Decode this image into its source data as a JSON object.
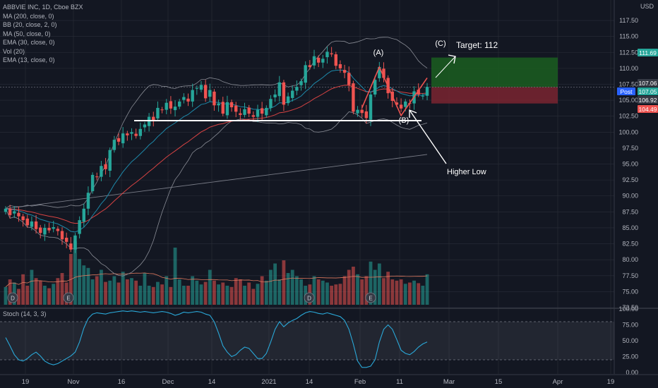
{
  "legend": {
    "title": "ABBVIE INC, 1D, Cboe BZX",
    "indicators": [
      "MA (200, close, 0)",
      "BB (20, close, 2, 0)",
      "MA (50, close, 0)",
      "EMA (30, close, 0)",
      "Vol (20)",
      "EMA (13, close, 0)"
    ]
  },
  "stoch_label": "Stoch (14, 3, 3)",
  "currency": "USD",
  "colors": {
    "up": "#26a69a",
    "down": "#ef5350",
    "bg": "#131722",
    "grid": "#2a2e39",
    "bb": "#8a8d96",
    "ema13": "#1e88a8",
    "ema30": "#d84343",
    "ma200": "#787b86",
    "stoch": "#2aa8d8",
    "target_zone": "#1b5e20",
    "stop_zone": "#7a2430"
  },
  "annotations": {
    "point_a": "(A)",
    "point_b": "(B)",
    "point_c": "(C)",
    "target": "Target: 112",
    "higher_low": "Higher Low"
  },
  "chart_data": {
    "type": "candlestick",
    "title": "ABBVIE INC, 1D, Cboe BZX",
    "x_tick_labels": [
      "19",
      "Nov",
      "16",
      "Dec",
      "14",
      "2021",
      "14",
      "Feb",
      "11",
      "Mar",
      "15",
      "Apr",
      "19"
    ],
    "y_tick_labels": [
      "117.50",
      "115.00",
      "112.50",
      "110.00",
      "107.50",
      "105.00",
      "102.50",
      "100.00",
      "97.50",
      "95.00",
      "92.50",
      "90.00",
      "87.50",
      "85.00",
      "82.50",
      "80.00",
      "77.50",
      "75.00",
      "72.50"
    ],
    "ylim": [
      72.5,
      118.5
    ],
    "price_labels": [
      {
        "label": "111.69",
        "value": 111.69,
        "color": "#26a69a"
      },
      {
        "label": "107.06",
        "value": 107.06,
        "color": "#363a45"
      },
      {
        "label": "Post",
        "value": 107.05,
        "color": "#2962ff"
      },
      {
        "label": "107.05",
        "value": 107.05,
        "color": "#26a69a"
      },
      {
        "label": "106.92",
        "value": 106.92,
        "color": "#363a45"
      },
      {
        "label": "104.49",
        "value": 104.49,
        "color": "#ef5350"
      }
    ],
    "trade_zone": {
      "target": 111.69,
      "entry": 107.06,
      "stop": 104.49
    },
    "support_level": 101.8,
    "point_a": 110.2,
    "point_b": 102.6,
    "closes": [
      88.0,
      87.0,
      87.6,
      86.8,
      86.2,
      85.4,
      86.0,
      84.8,
      84.2,
      85.0,
      84.6,
      85.1,
      84.5,
      83.2,
      82.8,
      81.6,
      83.8,
      86.2,
      88.0,
      90.5,
      93.3,
      93.0,
      94.7,
      94.2,
      97.2,
      98.8,
      98.5,
      99.8,
      99.5,
      100.0,
      99.4,
      100.5,
      101.2,
      102.4,
      101.9,
      103.8,
      103.5,
      104.6,
      103.7,
      104.0,
      104.8,
      105.5,
      104.8,
      106.6,
      106.9,
      107.4,
      105.3,
      106.6,
      104.2,
      104.5,
      102.9,
      104.7,
      103.9,
      103.2,
      102.7,
      103.6,
      102.9,
      102.4,
      103.5,
      102.9,
      103.8,
      105.2,
      105.9,
      107.8,
      104.3,
      105.6,
      106.5,
      107.1,
      108.0,
      110.5,
      110.2,
      111.9,
      110.9,
      111.5,
      112.6,
      112.2,
      110.4,
      110.0,
      109.3,
      107.4,
      103.2,
      103.5,
      103.0,
      102.2,
      105.9,
      108.2,
      110.2,
      108.5,
      106.1,
      104.9,
      104.3,
      103.7,
      104.8,
      104.5,
      106.4,
      105.9,
      105.7,
      107.1
    ],
    "volumes": [
      28,
      40,
      35,
      25,
      48,
      30,
      55,
      42,
      38,
      30,
      26,
      33,
      42,
      50,
      35,
      80,
      100,
      72,
      62,
      58,
      40,
      45,
      55,
      36,
      38,
      45,
      35,
      52,
      40,
      42,
      38,
      30,
      50,
      30,
      28,
      36,
      32,
      45,
      28,
      90,
      40,
      30,
      30,
      45,
      38,
      32,
      36,
      55,
      38,
      32,
      35,
      30,
      28,
      42,
      40,
      30,
      35,
      25,
      33,
      45,
      38,
      55,
      65,
      40,
      70,
      50,
      55,
      45,
      40,
      30,
      32,
      45,
      40,
      38,
      35,
      30,
      32,
      33,
      45,
      55,
      60,
      48,
      40,
      45,
      68,
      55,
      65,
      42,
      52,
      40,
      38,
      40,
      33,
      35,
      38,
      34,
      30,
      48
    ],
    "stoch_ylim": [
      0,
      100
    ],
    "stoch_y_tick_labels": [
      "100.00",
      "75.00",
      "50.00",
      "25.00",
      "0.00"
    ],
    "stoch": [
      55,
      42,
      28,
      20,
      18,
      22,
      28,
      32,
      26,
      18,
      14,
      12,
      14,
      18,
      22,
      26,
      32,
      48,
      70,
      85,
      92,
      94,
      93,
      92,
      94,
      95,
      96,
      97,
      96,
      97,
      96,
      95,
      96,
      95,
      94,
      95,
      96,
      95,
      93,
      90,
      92,
      95,
      94,
      95,
      96,
      95,
      92,
      90,
      80,
      62,
      42,
      32,
      25,
      28,
      35,
      40,
      38,
      30,
      22,
      22,
      30,
      48,
      68,
      80,
      72,
      78,
      82,
      85,
      90,
      94,
      96,
      95,
      93,
      92,
      94,
      92,
      90,
      88,
      82,
      68,
      45,
      18,
      8,
      8,
      10,
      20,
      48,
      68,
      75,
      68,
      52,
      35,
      30,
      28,
      33,
      40,
      45,
      48
    ]
  }
}
